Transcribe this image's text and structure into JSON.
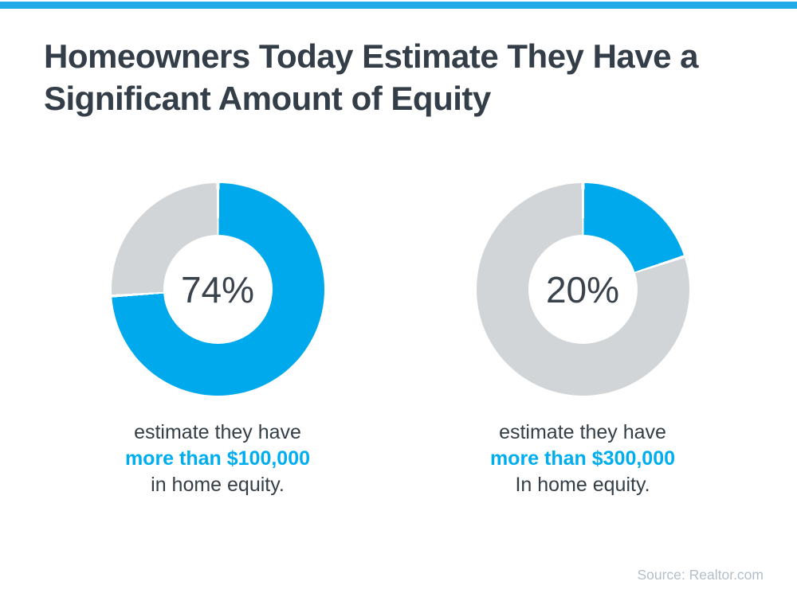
{
  "title": {
    "line1": "Homeowners Today Estimate They Have a",
    "line2": "Significant Amount of Equity"
  },
  "chart_data": [
    {
      "type": "pie",
      "donut": true,
      "start_angle_deg": 0,
      "direction": "clockwise",
      "percent": 74,
      "center_label": "74%",
      "segments": [
        {
          "label": "estimate they have more than $100,000 in home equity",
          "value": 74,
          "color": "#00a8ec"
        },
        {
          "label": "remainder",
          "value": 26,
          "color": "#d2d5d7"
        }
      ],
      "caption": {
        "line1": "estimate they have",
        "highlight": "more than $100,000",
        "line3": "in home equity."
      }
    },
    {
      "type": "pie",
      "donut": true,
      "start_angle_deg": 0,
      "direction": "clockwise",
      "percent": 20,
      "center_label": "20%",
      "segments": [
        {
          "label": "estimate they have more than $300,000 in home equity",
          "value": 20,
          "color": "#00a8ec"
        },
        {
          "label": "remainder",
          "value": 80,
          "color": "#d2d5d7"
        }
      ],
      "caption": {
        "line1": "estimate they have",
        "highlight": "more than $300,000",
        "line3": "In home equity."
      }
    }
  ],
  "source": {
    "text": "Source: Realtor.com"
  },
  "colors": {
    "top_bar": "#1fabe8",
    "donut_fill": "#00a8ec",
    "donut_remainder": "#d2d5d7",
    "title_text": "#343e48",
    "caption_text": "#343e47",
    "caption_highlight": "#00aeef",
    "percent_text": "#3a434c",
    "source_text": "#b3bfc8",
    "background": "#ffffff"
  }
}
